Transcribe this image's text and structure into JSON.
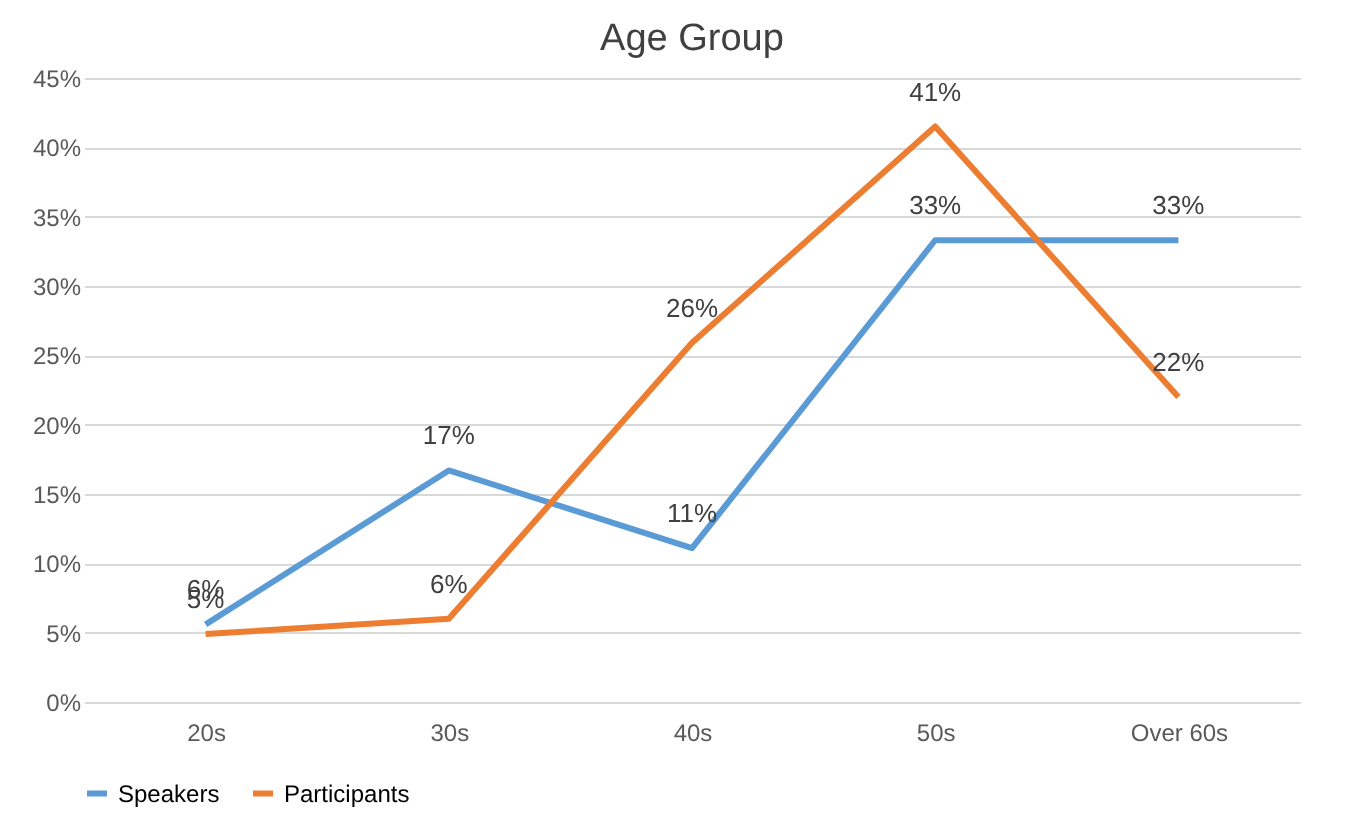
{
  "chart_data": {
    "type": "line",
    "title": "Age Group",
    "categories": [
      "20s",
      "30s",
      "40s",
      "50s",
      "Over 60s"
    ],
    "series": [
      {
        "name": "Speakers",
        "color": "#5b9bd5",
        "values": [
          5.6,
          16.7,
          11.1,
          33.3,
          33.3
        ],
        "value_labels": [
          "6%",
          "17%",
          "11%",
          "33%",
          "33%"
        ]
      },
      {
        "name": "Participants",
        "color": "#ed7d31",
        "values": [
          4.9,
          6.0,
          25.9,
          41.5,
          22.0
        ],
        "value_labels": [
          "5%",
          "6%",
          "26%",
          "41%",
          "22%"
        ]
      }
    ],
    "ylim": [
      0,
      45
    ],
    "yticks": [
      {
        "value": 0,
        "label": "0%"
      },
      {
        "value": 5,
        "label": "5%"
      },
      {
        "value": 10,
        "label": "10%"
      },
      {
        "value": 15,
        "label": "15%"
      },
      {
        "value": 20,
        "label": "20%"
      },
      {
        "value": 25,
        "label": "25%"
      },
      {
        "value": 30,
        "label": "30%"
      },
      {
        "value": 35,
        "label": "35%"
      },
      {
        "value": 40,
        "label": "40%"
      },
      {
        "value": 45,
        "label": "45%"
      }
    ],
    "grid": "y",
    "legend": "bottom",
    "marker": "none",
    "line_style": "solid"
  }
}
